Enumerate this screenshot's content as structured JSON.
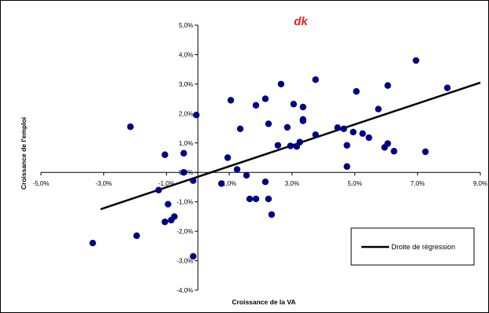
{
  "logo": {
    "text": "dk",
    "color": "#e8231e"
  },
  "colors": {
    "points": "#000080",
    "regression": "#000000",
    "axis": "#000000",
    "background": "#ffffff"
  },
  "chart_data": {
    "type": "scatter",
    "title": "",
    "xlabel": "Croissance de la VA",
    "ylabel": "Croissance de l'emploi",
    "xlim": [
      -0.05,
      0.09
    ],
    "ylim": [
      -0.04,
      0.05
    ],
    "grid": false,
    "x_tick_labels": [
      "-5,0%",
      "-3,0%",
      "-1,0%",
      "1,0%",
      "3,0%",
      "5,0%",
      "7,0%",
      "9,0%"
    ],
    "x_tick_values": [
      -0.05,
      -0.03,
      -0.01,
      0.01,
      0.03,
      0.05,
      0.07,
      0.09
    ],
    "y_tick_labels": [
      "-4,0%",
      "-3,0%",
      "-2,0%",
      "-1,0%",
      "0,0%",
      "1,0%",
      "2,0%",
      "3,0%",
      "4,0%",
      "5,0%"
    ],
    "y_tick_values": [
      -0.04,
      -0.03,
      -0.02,
      -0.01,
      0.0,
      0.01,
      0.02,
      0.03,
      0.04,
      0.05
    ],
    "legend": {
      "position": "bottom-right",
      "entries": [
        "Droite de régression"
      ]
    },
    "regression_line": {
      "x": [
        -0.031,
        0.09
      ],
      "y": [
        -0.0125,
        0.0305
      ]
    },
    "points": [
      {
        "x": -0.0335,
        "y": -0.024
      },
      {
        "x": -0.0195,
        "y": -0.0215
      },
      {
        "x": -0.0215,
        "y": 0.0155
      },
      {
        "x": -0.0125,
        "y": -0.006
      },
      {
        "x": -0.0105,
        "y": 0.006
      },
      {
        "x": -0.0105,
        "y": -0.0168
      },
      {
        "x": -0.0095,
        "y": -0.0108
      },
      {
        "x": -0.0085,
        "y": -0.0162
      },
      {
        "x": -0.0075,
        "y": -0.015
      },
      {
        "x": -0.0045,
        "y": 0.0065
      },
      {
        "x": -0.0045,
        "y": 0.0
      },
      {
        "x": -0.0015,
        "y": -0.0028
      },
      {
        "x": -0.0015,
        "y": -0.0285
      },
      {
        "x": -0.0005,
        "y": 0.0195
      },
      {
        "x": 0.0075,
        "y": -0.0038
      },
      {
        "x": 0.0095,
        "y": 0.005
      },
      {
        "x": 0.0105,
        "y": 0.0245
      },
      {
        "x": 0.0125,
        "y": 0.001
      },
      {
        "x": 0.0135,
        "y": 0.0148
      },
      {
        "x": 0.0155,
        "y": -0.001
      },
      {
        "x": 0.0165,
        "y": -0.009
      },
      {
        "x": 0.0185,
        "y": -0.009
      },
      {
        "x": 0.0185,
        "y": 0.0228
      },
      {
        "x": 0.0215,
        "y": 0.025
      },
      {
        "x": 0.0215,
        "y": -0.0032
      },
      {
        "x": 0.0225,
        "y": 0.0165
      },
      {
        "x": 0.0225,
        "y": -0.009
      },
      {
        "x": 0.0235,
        "y": -0.0143
      },
      {
        "x": 0.0255,
        "y": 0.0092
      },
      {
        "x": 0.0265,
        "y": 0.03
      },
      {
        "x": 0.0285,
        "y": 0.0153
      },
      {
        "x": 0.0295,
        "y": 0.009
      },
      {
        "x": 0.0305,
        "y": 0.0232
      },
      {
        "x": 0.0315,
        "y": 0.0088
      },
      {
        "x": 0.0325,
        "y": 0.0103
      },
      {
        "x": 0.0335,
        "y": 0.0175
      },
      {
        "x": 0.0335,
        "y": 0.0222
      },
      {
        "x": 0.0335,
        "y": 0.018
      },
      {
        "x": 0.0375,
        "y": 0.0128
      },
      {
        "x": 0.0375,
        "y": 0.0315
      },
      {
        "x": 0.0445,
        "y": 0.0152
      },
      {
        "x": 0.0465,
        "y": 0.0148
      },
      {
        "x": 0.0475,
        "y": 0.0092
      },
      {
        "x": 0.0475,
        "y": 0.002
      },
      {
        "x": 0.0495,
        "y": 0.0137
      },
      {
        "x": 0.0505,
        "y": 0.0275
      },
      {
        "x": 0.0525,
        "y": 0.0132
      },
      {
        "x": 0.0545,
        "y": 0.0118
      },
      {
        "x": 0.0575,
        "y": 0.0215
      },
      {
        "x": 0.0595,
        "y": 0.0085
      },
      {
        "x": 0.0605,
        "y": 0.0295
      },
      {
        "x": 0.0605,
        "y": 0.0098
      },
      {
        "x": 0.0625,
        "y": 0.0072
      },
      {
        "x": 0.0695,
        "y": 0.038
      },
      {
        "x": 0.0725,
        "y": 0.007
      },
      {
        "x": 0.0795,
        "y": 0.0287
      }
    ]
  }
}
